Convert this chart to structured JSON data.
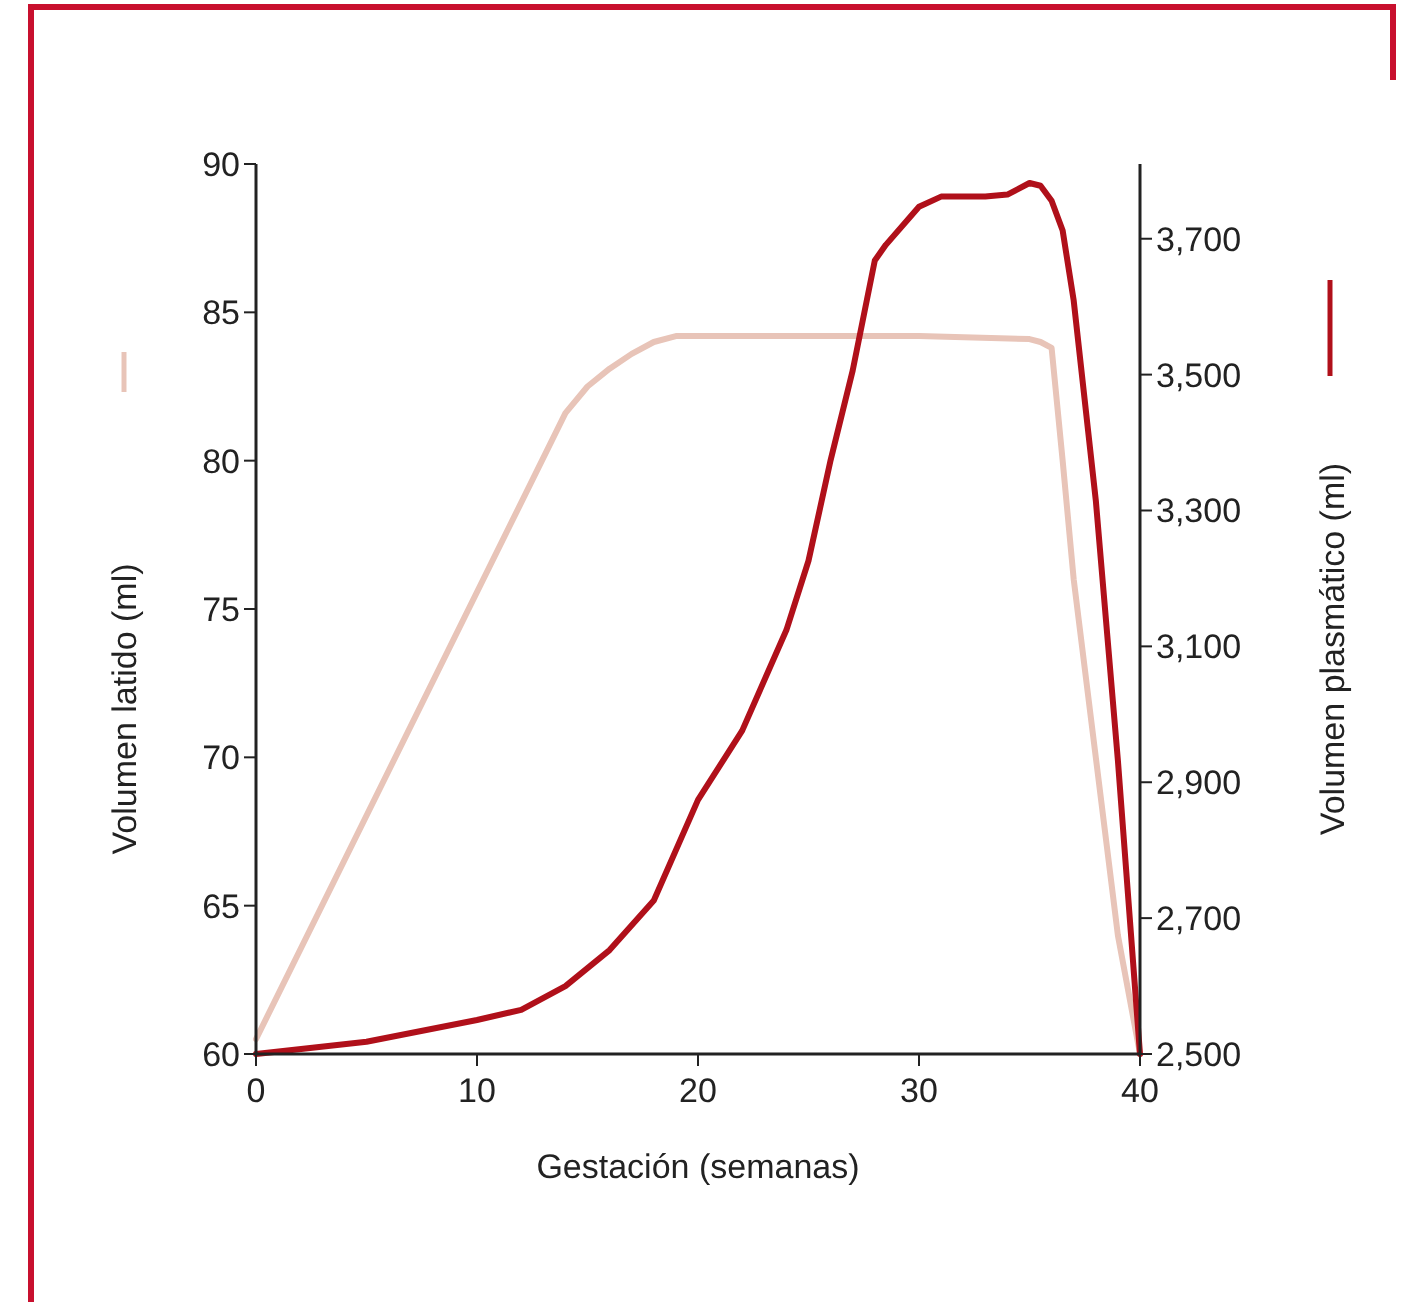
{
  "chart_data": {
    "type": "line",
    "xlabel": "Gestación (semanas)",
    "ylabel": "Volumen latido (ml)",
    "y2label": "Volumen plasmático (ml)",
    "xlim": [
      0,
      40
    ],
    "xticks": [
      0,
      10,
      20,
      30,
      40
    ],
    "ylim": [
      60,
      90
    ],
    "yticks": [
      60,
      65,
      70,
      75,
      80,
      85,
      90
    ],
    "y2lim": [
      2500,
      3810
    ],
    "y2ticks": [
      {
        "value": 2500,
        "label": "2,500"
      },
      {
        "value": 2700,
        "label": "2,700"
      },
      {
        "value": 2900,
        "label": "2,900"
      },
      {
        "value": 3100,
        "label": "3,100"
      },
      {
        "value": 3300,
        "label": "3,300"
      },
      {
        "value": 3500,
        "label": "3,500"
      },
      {
        "value": 3700,
        "label": "3,700"
      }
    ],
    "grid": false,
    "marker": "none",
    "line_style": "solid",
    "series": [
      {
        "color": "#e8c4b8",
        "x": [
          0,
          14,
          15,
          16,
          17,
          18,
          19,
          20,
          25,
          30,
          35,
          35.5,
          36,
          36.5,
          37,
          38,
          39,
          40
        ],
        "values": [
          60.5,
          81.6,
          82.5,
          83.1,
          83.6,
          84,
          84.2,
          84.2,
          84.2,
          84.2,
          84.1,
          84,
          83.8,
          80,
          76,
          70,
          64,
          60
        ]
      },
      {
        "color": "#b0101a",
        "axis": "y2",
        "x": [
          0,
          5,
          10,
          12,
          14,
          16,
          18,
          20,
          22,
          24,
          25,
          26,
          27,
          28,
          28.5,
          30,
          31,
          33,
          34,
          35,
          35.5,
          36,
          36.5,
          37,
          38,
          39,
          40
        ],
        "values": [
          2500,
          2518,
          2550,
          2565,
          2600,
          2653,
          2726,
          2874,
          2976,
          3124,
          3226,
          3374,
          3506,
          3668,
          3691,
          3747,
          3762,
          3762,
          3765,
          3782,
          3778,
          3756,
          3712,
          3609,
          3315,
          2932,
          2500
        ]
      }
    ]
  }
}
